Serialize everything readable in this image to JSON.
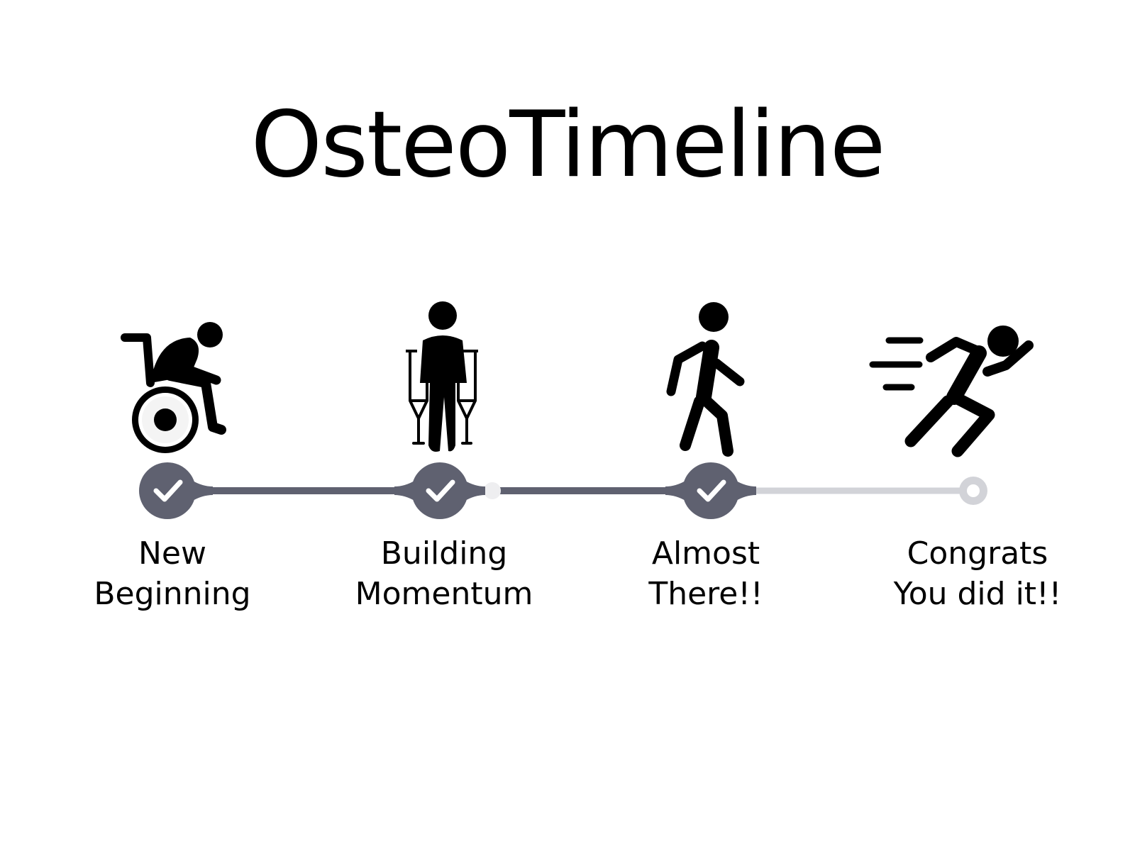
{
  "title": "OsteoTimeline",
  "colors": {
    "completed": "#5f6170",
    "pending": "#d2d3d8",
    "icon": "#000000",
    "check": "#ffffff"
  },
  "stages": [
    {
      "line1": "New",
      "line2": "Beginning",
      "icon": "wheelchair-person-icon",
      "status": "completed"
    },
    {
      "line1": "Building",
      "line2": "Momentum",
      "icon": "person-on-crutches-icon",
      "status": "completed"
    },
    {
      "line1": "Almost",
      "line2": "There!!",
      "icon": "walking-person-icon",
      "status": "completed"
    },
    {
      "line1": "Congrats",
      "line2": "You did it!!",
      "icon": "running-person-icon",
      "status": "pending"
    }
  ]
}
